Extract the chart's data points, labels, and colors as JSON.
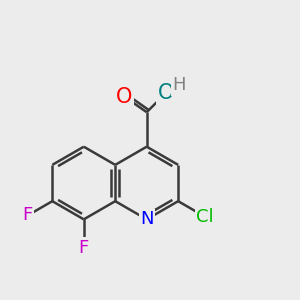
{
  "bg_color": "#ececec",
  "atom_colors": {
    "C": "#000000",
    "N": "#0000ff",
    "O_carbonyl": "#ff0000",
    "O_hydroxyl": "#008080",
    "H": "#808080",
    "F": "#cc00cc",
    "Cl": "#00bb00"
  },
  "bond_color": "#3a3a3a",
  "bond_width": 1.8,
  "font_size": 13,
  "figsize": [
    3.0,
    3.0
  ],
  "dpi": 100,
  "bl": 0.55
}
